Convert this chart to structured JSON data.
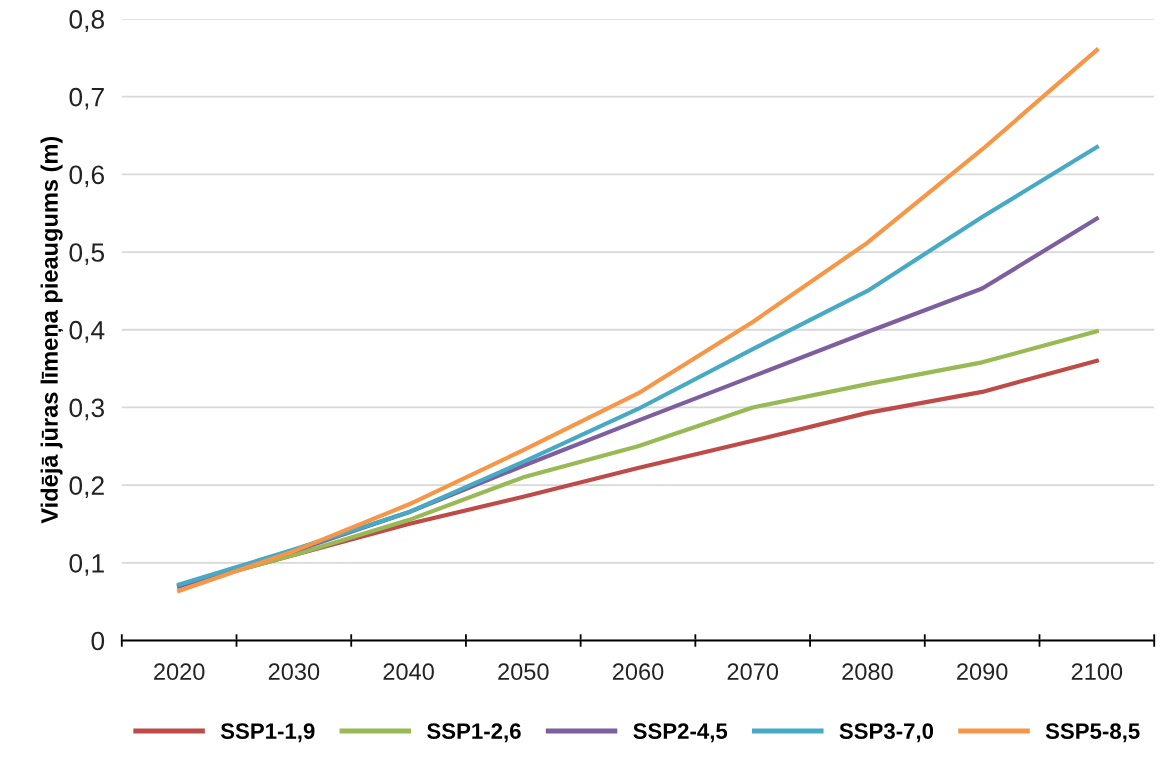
{
  "chart_data": {
    "type": "line",
    "ylabel": "Vidējā jūras līmeņa pieaugums (m)",
    "categories": [
      "2020",
      "2030",
      "2040",
      "2050",
      "2060",
      "2070",
      "2080",
      "2090",
      "2100"
    ],
    "series": [
      {
        "name": "SSP1-1,9",
        "color": "#be4b48",
        "values": [
          0.07,
          0.11,
          0.15,
          0.185,
          0.222,
          0.257,
          0.293,
          0.32,
          0.36
        ]
      },
      {
        "name": "SSP1-2,6",
        "color": "#98b954",
        "values": [
          0.07,
          0.11,
          0.155,
          0.21,
          0.25,
          0.3,
          0.33,
          0.358,
          0.398
        ]
      },
      {
        "name": "SSP2-4,5",
        "color": "#7d5fa0",
        "values": [
          0.07,
          0.115,
          0.165,
          0.225,
          0.283,
          0.34,
          0.397,
          0.453,
          0.543
        ]
      },
      {
        "name": "SSP3-7,0",
        "color": "#46aac5",
        "values": [
          0.072,
          0.117,
          0.165,
          0.23,
          0.298,
          0.375,
          0.45,
          0.545,
          0.635
        ]
      },
      {
        "name": "SSP5-8,5",
        "color": "#f79646",
        "values": [
          0.064,
          0.115,
          0.175,
          0.245,
          0.318,
          0.41,
          0.512,
          0.632,
          0.76
        ]
      }
    ],
    "ylim": [
      0,
      0.8
    ],
    "yticks": [
      0,
      {
        "value": 0.1,
        "label": "0,1"
      },
      {
        "value": 0.2,
        "label": "0,2"
      },
      {
        "value": 0.3,
        "label": "0,3"
      },
      {
        "value": 0.4,
        "label": "0,4"
      },
      {
        "value": 0.5,
        "label": "0,5"
      },
      {
        "value": 0.6,
        "label": "0,6"
      },
      {
        "value": 0.7,
        "label": "0,7"
      },
      {
        "value": 0.8,
        "label": "0,8"
      }
    ],
    "grid": "y",
    "legend": "bottom",
    "marker": "none",
    "line_style": "solid"
  }
}
